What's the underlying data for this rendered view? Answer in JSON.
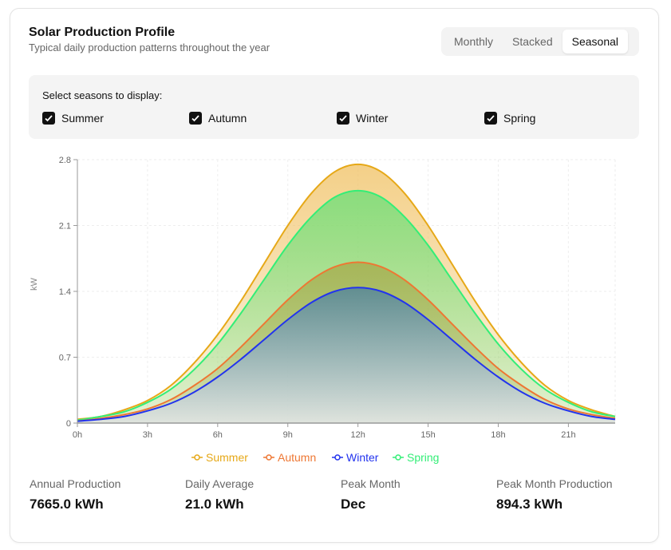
{
  "header": {
    "title": "Solar Production Profile",
    "subtitle": "Typical daily production patterns throughout the year"
  },
  "tabs": [
    {
      "label": "Monthly",
      "active": false
    },
    {
      "label": "Stacked",
      "active": false
    },
    {
      "label": "Seasonal",
      "active": true
    }
  ],
  "filter": {
    "label": "Select seasons to display:",
    "seasons": [
      {
        "label": "Summer",
        "checked": true
      },
      {
        "label": "Autumn",
        "checked": true
      },
      {
        "label": "Winter",
        "checked": true
      },
      {
        "label": "Spring",
        "checked": true
      }
    ]
  },
  "chart_data": {
    "type": "area",
    "ylabel": "kW",
    "x": [
      0,
      1,
      2,
      3,
      4,
      5,
      6,
      7,
      8,
      9,
      10,
      11,
      12,
      13,
      14,
      15,
      16,
      17,
      18,
      19,
      20,
      21,
      22,
      23
    ],
    "xticks": [
      {
        "v": 0,
        "label": "0h"
      },
      {
        "v": 3,
        "label": "3h"
      },
      {
        "v": 6,
        "label": "6h"
      },
      {
        "v": 9,
        "label": "9h"
      },
      {
        "v": 12,
        "label": "12h"
      },
      {
        "v": 15,
        "label": "15h"
      },
      {
        "v": 18,
        "label": "18h"
      },
      {
        "v": 21,
        "label": "21h"
      }
    ],
    "yticks": [
      {
        "v": 0,
        "label": "0"
      },
      {
        "v": 0.7,
        "label": "0.7"
      },
      {
        "v": 1.4,
        "label": "1.4"
      },
      {
        "v": 2.1,
        "label": "2.1"
      },
      {
        "v": 2.8,
        "label": "2.8"
      }
    ],
    "xlim": [
      0,
      23
    ],
    "ylim": [
      0,
      2.8
    ],
    "grid": true,
    "legend": "bottom",
    "series": [
      {
        "name": "Summer",
        "color": "#e6a817",
        "values": [
          0.04,
          0.07,
          0.14,
          0.24,
          0.4,
          0.64,
          0.94,
          1.3,
          1.7,
          2.1,
          2.44,
          2.67,
          2.75,
          2.67,
          2.44,
          2.1,
          1.7,
          1.3,
          0.94,
          0.64,
          0.4,
          0.24,
          0.14,
          0.07
        ]
      },
      {
        "name": "Autumn",
        "color": "#ee7733",
        "values": [
          0.02,
          0.05,
          0.09,
          0.15,
          0.25,
          0.4,
          0.58,
          0.81,
          1.06,
          1.31,
          1.52,
          1.66,
          1.71,
          1.66,
          1.52,
          1.31,
          1.06,
          0.81,
          0.58,
          0.4,
          0.25,
          0.15,
          0.09,
          0.05
        ]
      },
      {
        "name": "Winter",
        "color": "#2233ee",
        "values": [
          0.02,
          0.04,
          0.07,
          0.13,
          0.21,
          0.33,
          0.49,
          0.68,
          0.89,
          1.1,
          1.28,
          1.4,
          1.44,
          1.4,
          1.28,
          1.1,
          0.89,
          0.68,
          0.49,
          0.33,
          0.21,
          0.13,
          0.07,
          0.04
        ]
      },
      {
        "name": "Spring",
        "color": "#33ee77",
        "values": [
          0.03,
          0.07,
          0.12,
          0.22,
          0.36,
          0.57,
          0.84,
          1.17,
          1.53,
          1.89,
          2.19,
          2.4,
          2.47,
          2.4,
          2.19,
          1.89,
          1.53,
          1.17,
          0.84,
          0.57,
          0.36,
          0.22,
          0.12,
          0.07
        ]
      }
    ]
  },
  "stats": [
    {
      "label": "Annual Production",
      "value": "7665.0 kWh"
    },
    {
      "label": "Daily Average",
      "value": "21.0 kWh"
    },
    {
      "label": "Peak Month",
      "value": "Dec"
    },
    {
      "label": "Peak Month Production",
      "value": "894.3 kWh"
    }
  ]
}
